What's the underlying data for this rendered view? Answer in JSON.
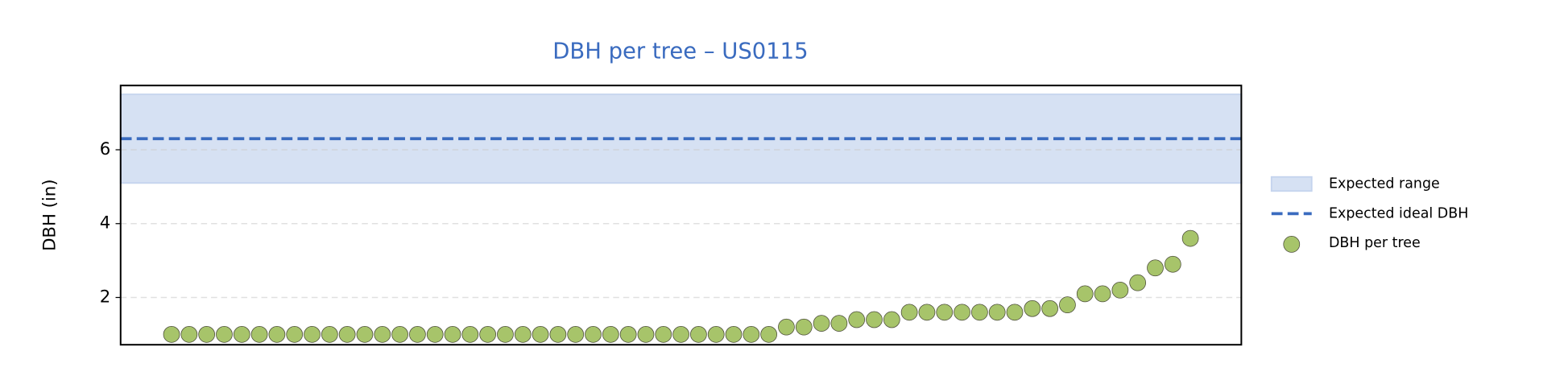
{
  "chart_data": {
    "type": "scatter",
    "title": "DBH per tree – US0115",
    "y_label": "DBH (in)",
    "x": [
      0,
      1,
      2,
      3,
      4,
      5,
      6,
      7,
      8,
      9,
      10,
      11,
      12,
      13,
      14,
      15,
      16,
      17,
      18,
      19,
      20,
      21,
      22,
      23,
      24,
      25,
      26,
      27,
      28,
      29,
      30,
      31,
      32,
      33,
      34,
      35,
      36,
      37,
      38,
      39,
      40,
      41,
      42,
      43,
      44,
      45,
      46,
      47,
      48,
      49,
      50,
      51,
      52,
      53,
      54,
      55,
      56,
      57,
      58
    ],
    "series": [
      {
        "name": "DBH per tree",
        "color": "#a7c46a",
        "values": [
          1,
          1,
          1,
          1,
          1,
          1,
          1,
          1,
          1,
          1,
          1,
          1,
          1,
          1,
          1,
          1,
          1,
          1,
          1,
          1,
          1,
          1,
          1,
          1,
          1,
          1,
          1,
          1,
          1,
          1,
          1,
          1,
          1,
          1,
          1.0,
          1.2,
          1.2,
          1.3,
          1.3,
          1.4,
          1.4,
          1.4,
          1.6,
          1.6,
          1.6,
          1.6,
          1.6,
          1.6,
          1.6,
          1.7,
          1.7,
          1.8,
          2.1,
          2.1,
          2.2,
          2.4,
          2.8,
          2.9,
          3.6
        ]
      }
    ],
    "expected_range": {
      "name": "Expected range",
      "range": [
        5.1,
        7.5
      ],
      "color": "#c5d4ee"
    },
    "ideal": {
      "name": "Expected ideal DBH",
      "value": 6.3,
      "color": "#3a6bbf"
    },
    "xlim": [
      -2.9,
      60.9
    ],
    "ylim": [
      0.72,
      7.74
    ],
    "yticks": [
      2,
      4,
      6
    ],
    "grid": true,
    "legend": "right"
  }
}
